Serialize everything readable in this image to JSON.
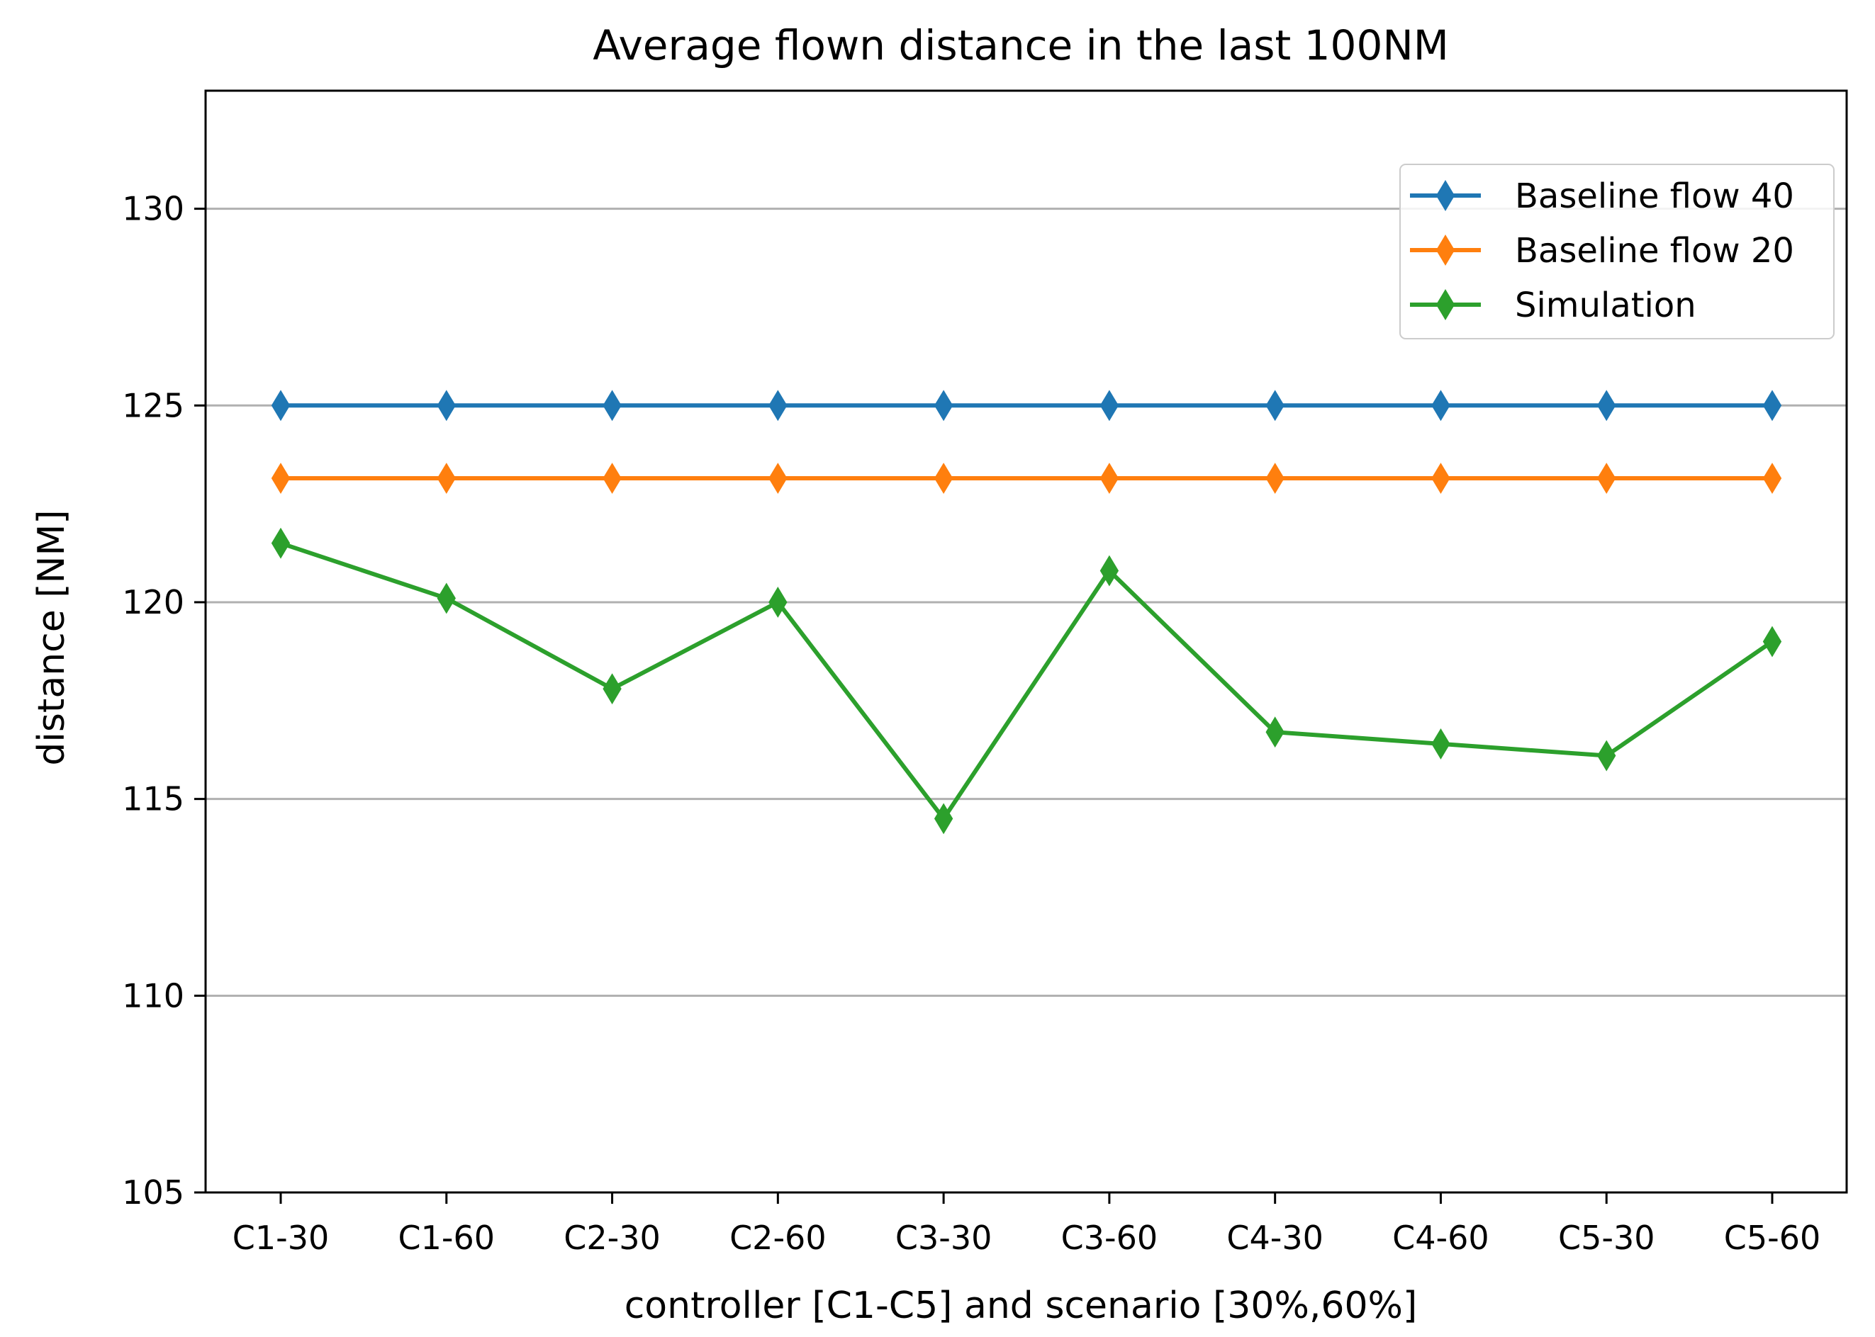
{
  "chart_data": {
    "type": "line",
    "title": "Average flown distance in the last 100NM",
    "xlabel": "controller [C1-C5] and scenario [30%,60%]",
    "ylabel": "distance [NM]",
    "categories": [
      "C1-30",
      "C1-60",
      "C2-30",
      "C2-60",
      "C3-30",
      "C3-60",
      "C4-30",
      "C4-60",
      "C5-30",
      "C5-60"
    ],
    "ylim": [
      105,
      133
    ],
    "yticks": [
      105,
      110,
      115,
      120,
      125,
      130
    ],
    "ytick_labels": [
      "105",
      "110",
      "115",
      "120",
      "125",
      "130"
    ],
    "grid": "y",
    "legend_position": "upper-right",
    "marker": "diamond",
    "series": [
      {
        "name": "Baseline flow 40",
        "color": "#1f77b4",
        "values": [
          125.0,
          125.0,
          125.0,
          125.0,
          125.0,
          125.0,
          125.0,
          125.0,
          125.0,
          125.0
        ]
      },
      {
        "name": "Baseline flow 20",
        "color": "#ff7f0e",
        "values": [
          123.15,
          123.15,
          123.15,
          123.15,
          123.15,
          123.15,
          123.15,
          123.15,
          123.15,
          123.15
        ]
      },
      {
        "name": "Simulation",
        "color": "#2ca02c",
        "values": [
          121.5,
          120.1,
          117.8,
          120.0,
          114.5,
          120.8,
          116.7,
          116.4,
          116.1,
          119.0
        ]
      }
    ]
  }
}
